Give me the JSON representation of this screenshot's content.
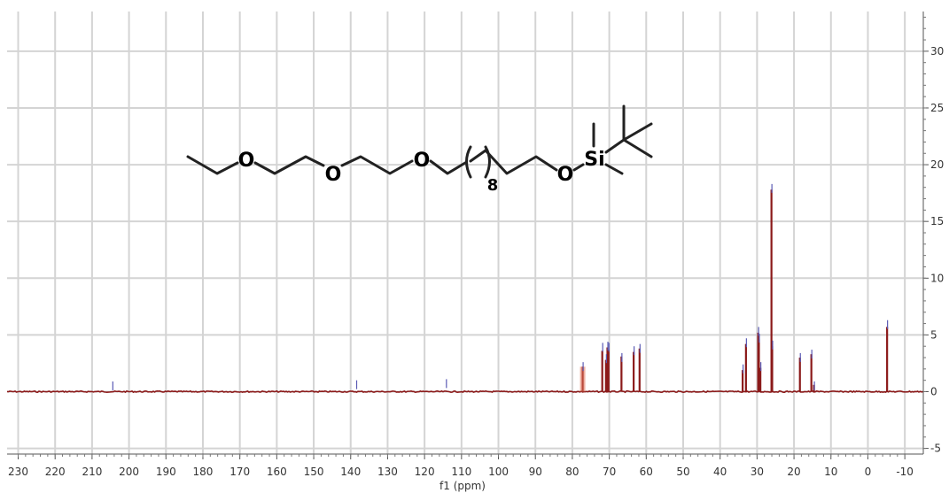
{
  "chart_data": {
    "type": "line",
    "title": "",
    "xlabel": "f1 (ppm)",
    "ylabel": "",
    "xlim": [
      233,
      -15
    ],
    "ylim": [
      -5.5,
      33.5
    ],
    "x_reversed": true,
    "grid": true,
    "x_ticks": [
      230,
      220,
      210,
      200,
      190,
      180,
      170,
      160,
      150,
      140,
      130,
      120,
      110,
      100,
      90,
      80,
      70,
      60,
      50,
      40,
      30,
      20,
      10,
      0,
      -10
    ],
    "y_ticks": [
      -5,
      0,
      5,
      10,
      15,
      20,
      25,
      30
    ],
    "y_axis_position": "right",
    "baseline": 0,
    "series": [
      {
        "role": "spectrum",
        "color": "#8b1a1a",
        "peaks": [
          {
            "x": 77.2,
            "y": 2.2
          },
          {
            "x": 71.9,
            "y": 3.6
          },
          {
            "x": 70.9,
            "y": 2.8
          },
          {
            "x": 70.5,
            "y": 3.9
          },
          {
            "x": 70.2,
            "y": 3.7
          },
          {
            "x": 66.7,
            "y": 3.1
          },
          {
            "x": 63.4,
            "y": 3.5
          },
          {
            "x": 61.8,
            "y": 3.8
          },
          {
            "x": 33.9,
            "y": 1.9
          },
          {
            "x": 33.0,
            "y": 4.2
          },
          {
            "x": 29.7,
            "y": 5.2
          },
          {
            "x": 29.5,
            "y": 4.6
          },
          {
            "x": 29.1,
            "y": 2.1
          },
          {
            "x": 26.1,
            "y": 17.8
          },
          {
            "x": 25.9,
            "y": 4.0
          },
          {
            "x": 18.4,
            "y": 3.0
          },
          {
            "x": 15.3,
            "y": 3.3
          },
          {
            "x": 14.6,
            "y": 0.6
          },
          {
            "x": -5.2,
            "y": 5.7
          }
        ]
      },
      {
        "role": "peak markers",
        "color": "#5a5ab4",
        "marks": [
          {
            "x": 204.5,
            "y": 0.9
          },
          {
            "x": 138.5,
            "y": 1.0
          },
          {
            "x": 114.2,
            "y": 1.1
          },
          {
            "x": 77.2,
            "y": 2.6
          },
          {
            "x": 71.9,
            "y": 4.3
          },
          {
            "x": 70.9,
            "y": 3.3
          },
          {
            "x": 70.5,
            "y": 4.4
          },
          {
            "x": 70.2,
            "y": 4.3
          },
          {
            "x": 66.7,
            "y": 3.4
          },
          {
            "x": 63.4,
            "y": 4.0
          },
          {
            "x": 61.8,
            "y": 4.2
          },
          {
            "x": 33.9,
            "y": 2.4
          },
          {
            "x": 33.0,
            "y": 4.7
          },
          {
            "x": 29.7,
            "y": 5.7
          },
          {
            "x": 29.5,
            "y": 5.1
          },
          {
            "x": 29.1,
            "y": 2.6
          },
          {
            "x": 26.1,
            "y": 18.3
          },
          {
            "x": 25.9,
            "y": 4.5
          },
          {
            "x": 18.4,
            "y": 3.4
          },
          {
            "x": 15.3,
            "y": 3.7
          },
          {
            "x": 14.6,
            "y": 0.9
          },
          {
            "x": -5.2,
            "y": 6.3
          }
        ]
      }
    ]
  },
  "structure": {
    "atoms": [
      "O",
      "O",
      "O",
      "O",
      "Si"
    ],
    "repeat_subscript": "8"
  }
}
